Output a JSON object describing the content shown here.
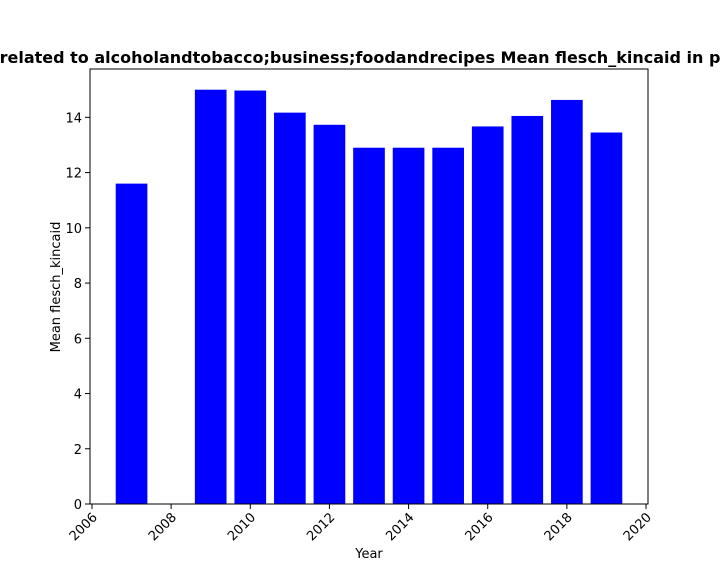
{
  "chart_data": {
    "type": "bar",
    "title": "related to alcoholandtobacco;business;foodandrecipes Mean flesch_kincaid in p",
    "xlabel": "Year",
    "ylabel": "Mean flesch_kincaid",
    "x": [
      2007,
      2009,
      2010,
      2011,
      2012,
      2013,
      2014,
      2015,
      2016,
      2017,
      2018,
      2019
    ],
    "values": [
      11.6,
      15.0,
      14.97,
      14.17,
      13.73,
      12.9,
      12.9,
      12.9,
      13.67,
      14.05,
      14.63,
      13.45
    ],
    "xlim": [
      2005.95,
      2020.05
    ],
    "ylim": [
      0,
      15.75
    ],
    "xticks": [
      2006,
      2008,
      2010,
      2012,
      2014,
      2016,
      2018,
      2020
    ],
    "yticks": [
      0,
      2,
      4,
      6,
      8,
      10,
      12,
      14
    ],
    "bar_color": "#0000ff",
    "grid": false,
    "legend": "none"
  }
}
